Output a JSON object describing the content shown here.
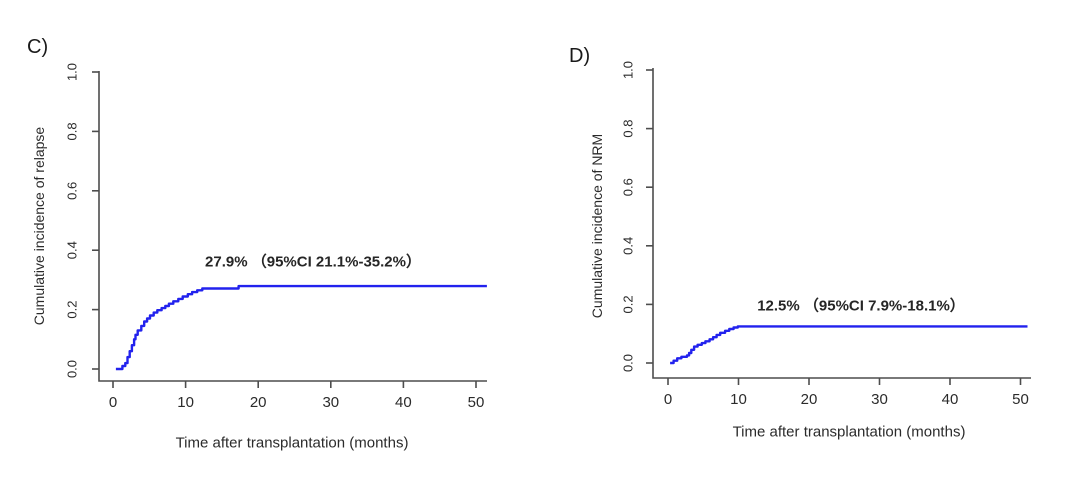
{
  "figure": {
    "background": "#ffffff",
    "axis_color": "#4d4d4d",
    "text_color": "#2b2b2b",
    "curve_color": "#2222ee"
  },
  "chart_data": [
    {
      "type": "line",
      "subtype": "step-cumulative-incidence",
      "panel_id": "c",
      "panel_label": "C)",
      "curve_name": "relapse-curve",
      "ylabel": "Cumulative incidence of relapse",
      "xlabel": "Time after transplantation (months)",
      "annotation": "27.9% （95%CI 21.1%-35.2%）",
      "x_ticks": [
        "0",
        "10",
        "20",
        "30",
        "40",
        "50"
      ],
      "x_tick_values": [
        0,
        10,
        20,
        30,
        40,
        50
      ],
      "y_ticks": [
        "0.0",
        "0.2",
        "0.4",
        "0.6",
        "0.8",
        "1.0"
      ],
      "y_tick_values": [
        0,
        0.2,
        0.4,
        0.6,
        0.8,
        1.0
      ],
      "xlim": [
        0,
        51.5
      ],
      "ylim": [
        0,
        1.0
      ],
      "grid": false,
      "legend": false,
      "line_color": "#2222ee",
      "final_estimate": 0.279,
      "points": [
        [
          0.4,
          0.0
        ],
        [
          1.3,
          0.01
        ],
        [
          1.7,
          0.02
        ],
        [
          2.0,
          0.04
        ],
        [
          2.3,
          0.06
        ],
        [
          2.6,
          0.08
        ],
        [
          2.9,
          0.1
        ],
        [
          3.1,
          0.115
        ],
        [
          3.4,
          0.13
        ],
        [
          3.9,
          0.145
        ],
        [
          4.3,
          0.16
        ],
        [
          4.7,
          0.17
        ],
        [
          5.1,
          0.18
        ],
        [
          5.6,
          0.19
        ],
        [
          6.1,
          0.198
        ],
        [
          6.7,
          0.205
        ],
        [
          7.2,
          0.212
        ],
        [
          7.7,
          0.22
        ],
        [
          8.3,
          0.228
        ],
        [
          9.0,
          0.236
        ],
        [
          9.6,
          0.244
        ],
        [
          10.3,
          0.252
        ],
        [
          10.9,
          0.259
        ],
        [
          11.6,
          0.265
        ],
        [
          12.3,
          0.271
        ],
        [
          17.3,
          0.279
        ],
        [
          51.5,
          0.279
        ]
      ]
    },
    {
      "type": "line",
      "subtype": "step-cumulative-incidence",
      "panel_id": "d",
      "panel_label": "D)",
      "curve_name": "nrm-curve",
      "ylabel": "Cumulative incidence of NRM",
      "xlabel": "Time after transplantation (months)",
      "annotation": "12.5% （95%CI 7.9%-18.1%）",
      "x_ticks": [
        "0",
        "10",
        "20",
        "30",
        "40",
        "50"
      ],
      "x_tick_values": [
        0,
        10,
        20,
        30,
        40,
        50
      ],
      "y_ticks": [
        "0.0",
        "0.2",
        "0.4",
        "0.6",
        "0.8",
        "1.0"
      ],
      "y_tick_values": [
        0,
        0.2,
        0.4,
        0.6,
        0.8,
        1.0
      ],
      "xlim": [
        0,
        51.0
      ],
      "ylim": [
        0,
        1.0
      ],
      "grid": false,
      "legend": false,
      "line_color": "#2222ee",
      "final_estimate": 0.125,
      "points": [
        [
          0.3,
          0.0
        ],
        [
          0.8,
          0.008
        ],
        [
          1.3,
          0.016
        ],
        [
          1.9,
          0.021
        ],
        [
          2.7,
          0.026
        ],
        [
          3.0,
          0.034
        ],
        [
          3.3,
          0.045
        ],
        [
          3.7,
          0.056
        ],
        [
          4.2,
          0.062
        ],
        [
          4.8,
          0.068
        ],
        [
          5.3,
          0.074
        ],
        [
          5.9,
          0.081
        ],
        [
          6.4,
          0.088
        ],
        [
          6.9,
          0.096
        ],
        [
          7.4,
          0.103
        ],
        [
          8.1,
          0.11
        ],
        [
          8.7,
          0.116
        ],
        [
          9.3,
          0.121
        ],
        [
          9.9,
          0.125
        ],
        [
          51.0,
          0.125
        ]
      ]
    }
  ]
}
